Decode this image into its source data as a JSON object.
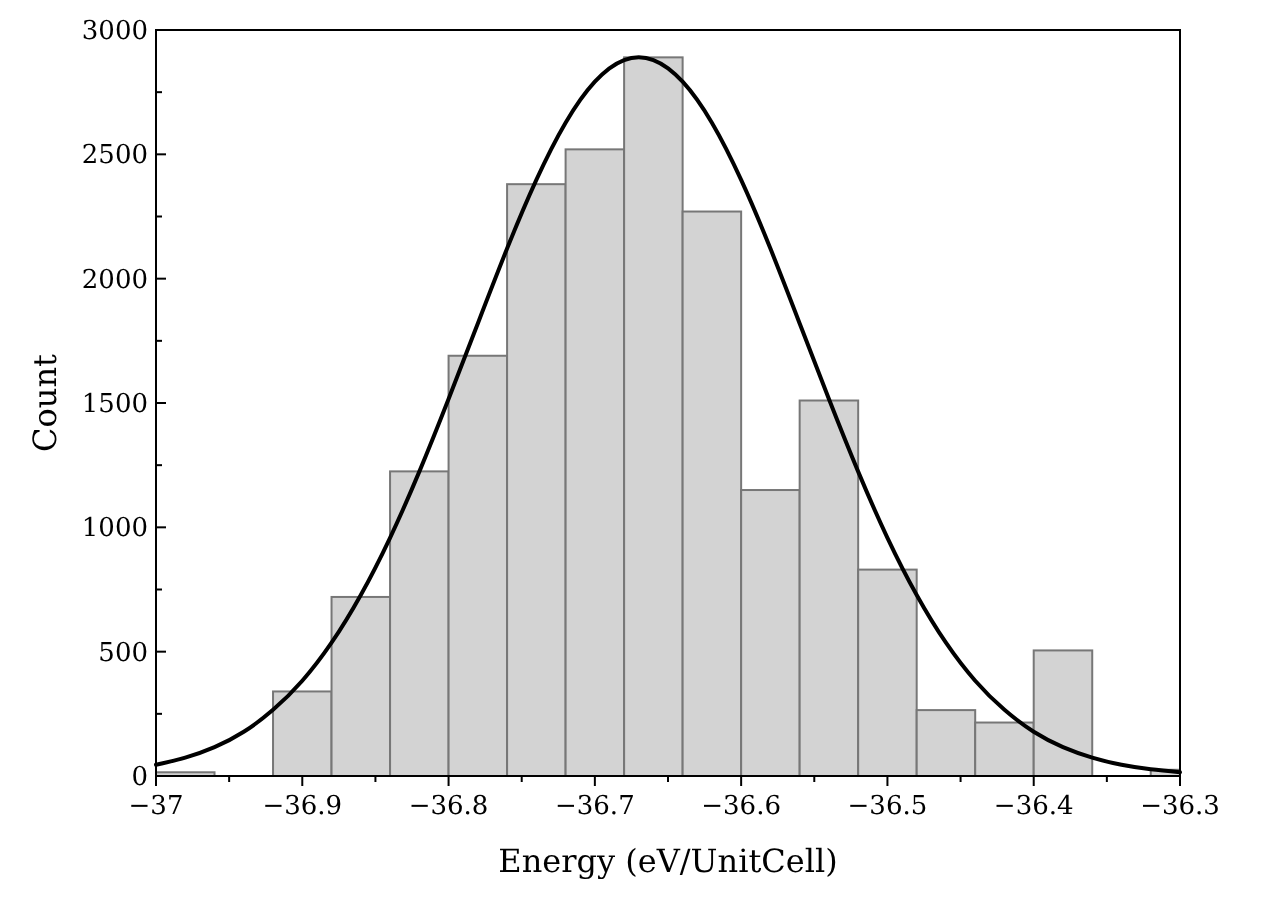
{
  "chart_data": {
    "type": "histogram",
    "xlabel": "Energy (eV/UnitCell)",
    "ylabel": "Count",
    "bins": [
      -37,
      -36.96,
      -36.92,
      -36.88,
      -36.84,
      -36.8,
      -36.76,
      -36.72,
      -36.68,
      -36.64,
      -36.6,
      -36.56,
      -36.52,
      -36.48,
      -36.44,
      -36.4,
      -36.36,
      -36.32,
      -36.3
    ],
    "series": [
      {
        "color": "#d3d3d3",
        "values": [
          15,
          0,
          340,
          720,
          1225,
          1690,
          2380,
          2520,
          2890,
          2270,
          1150,
          1510,
          830,
          265,
          215,
          505,
          0,
          25
        ]
      },
      {
        "type": "line",
        "color": "#000000",
        "x": [
          -37,
          -36.98,
          -36.96,
          -36.94,
          -36.92,
          -36.9,
          -36.88,
          -36.86,
          -36.84,
          -36.82,
          -36.8,
          -36.78,
          -36.76,
          -36.74,
          -36.72,
          -36.7,
          -36.68,
          -36.66,
          -36.64,
          -36.62,
          -36.6,
          -36.58,
          -36.56,
          -36.54,
          -36.52,
          -36.5,
          -36.48,
          -36.46,
          -36.44,
          -36.42,
          -36.4,
          -36.38,
          -36.36,
          -36.34,
          -36.32,
          -36.3
        ],
        "values": [
          45,
          74,
          116,
          178,
          266,
          383,
          536,
          728,
          958,
          1224,
          1516,
          1820,
          2121,
          2397,
          2627,
          2792,
          2879,
          2879,
          2792,
          2627,
          2397,
          2121,
          1820,
          1516,
          1224,
          958,
          728,
          536,
          383,
          266,
          178,
          116,
          74,
          45,
          27,
          15
        ]
      }
    ],
    "xlim": [
      -37,
      -36.3
    ],
    "xticks": [
      {
        "value": -37,
        "label": "−37"
      },
      {
        "value": -36.95,
        "label": null
      },
      {
        "value": -36.9,
        "label": "−36.9"
      },
      {
        "value": -36.85,
        "label": null
      },
      {
        "value": -36.8,
        "label": "−36.8"
      },
      {
        "value": -36.75,
        "label": null
      },
      {
        "value": -36.7,
        "label": "−36.7"
      },
      {
        "value": -36.65,
        "label": null
      },
      {
        "value": -36.6,
        "label": "−36.6"
      },
      {
        "value": -36.55,
        "label": null
      },
      {
        "value": -36.5,
        "label": "−36.5"
      },
      {
        "value": -36.45,
        "label": null
      },
      {
        "value": -36.4,
        "label": "−36.4"
      },
      {
        "value": -36.35,
        "label": null
      },
      {
        "value": -36.3,
        "label": "−36.3"
      }
    ],
    "ylim": [
      0,
      3000
    ],
    "yticks": [
      0,
      {
        "value": 250,
        "label": null
      },
      500,
      {
        "value": 750,
        "label": null
      },
      1000,
      {
        "value": 1250,
        "label": null
      },
      1500,
      {
        "value": 1750,
        "label": null
      },
      2000,
      {
        "value": 2250,
        "label": null
      },
      2500,
      {
        "value": 2750,
        "label": null
      },
      3000
    ],
    "grid": false
  }
}
